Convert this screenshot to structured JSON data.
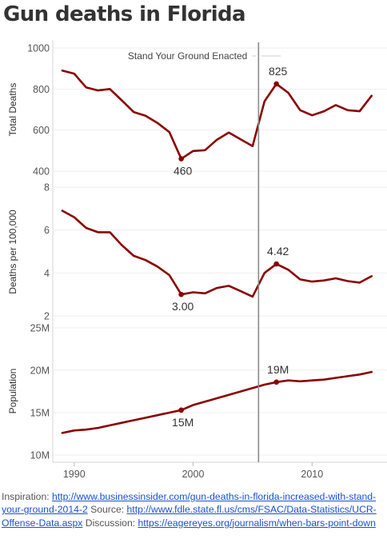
{
  "title": "Gun deaths in Florida",
  "chart_data": [
    {
      "type": "line",
      "ylabel": "Total Deaths",
      "ylim": [
        400,
        1000
      ],
      "yticks": [
        400,
        600,
        800,
        1000
      ],
      "x": [
        1989,
        1990,
        1991,
        1992,
        1993,
        1994,
        1995,
        1996,
        1997,
        1998,
        1999,
        2000,
        2001,
        2002,
        2003,
        2004,
        2005,
        2006,
        2007,
        2008,
        2009,
        2010,
        2011,
        2012,
        2013,
        2014,
        2015
      ],
      "values": [
        890,
        875,
        808,
        793,
        800,
        745,
        688,
        670,
        635,
        590,
        460,
        498,
        502,
        553,
        588,
        555,
        522,
        740,
        825,
        782,
        697,
        672,
        692,
        722,
        697,
        692,
        767
      ],
      "annotations": [
        {
          "x": 1999,
          "value": 460,
          "label": "460"
        },
        {
          "x": 2007,
          "value": 825,
          "label": "825"
        }
      ],
      "reference_line": {
        "x": 2005.5,
        "label": "Stand Your Ground Enacted"
      },
      "color": "#8b0000"
    },
    {
      "type": "line",
      "ylabel": "Deaths per 100,000",
      "ylim": [
        2,
        8
      ],
      "yticks": [
        2,
        4,
        6,
        8
      ],
      "x": [
        1989,
        1990,
        1991,
        1992,
        1993,
        1994,
        1995,
        1996,
        1997,
        1998,
        1999,
        2000,
        2001,
        2002,
        2003,
        2004,
        2005,
        2006,
        2007,
        2008,
        2009,
        2010,
        2011,
        2012,
        2013,
        2014,
        2015
      ],
      "values": [
        6.9,
        6.6,
        6.1,
        5.9,
        5.9,
        5.3,
        4.8,
        4.6,
        4.3,
        3.9,
        3.0,
        3.1,
        3.05,
        3.3,
        3.4,
        3.15,
        2.9,
        4.0,
        4.42,
        4.15,
        3.7,
        3.6,
        3.65,
        3.75,
        3.62,
        3.55,
        3.85
      ],
      "annotations": [
        {
          "x": 1999,
          "value": 3.0,
          "label": "3.00"
        },
        {
          "x": 2007,
          "value": 4.42,
          "label": "4.42"
        }
      ],
      "color": "#8b0000"
    },
    {
      "type": "line",
      "ylabel": "Population",
      "ylim": [
        10,
        25
      ],
      "yticks": [
        10,
        15,
        20,
        25
      ],
      "ytick_labels": [
        "10M",
        "15M",
        "20M",
        "25M"
      ],
      "x": [
        1989,
        1990,
        1991,
        1992,
        1993,
        1994,
        1995,
        1996,
        1997,
        1998,
        1999,
        2000,
        2001,
        2002,
        2003,
        2004,
        2005,
        2006,
        2007,
        2008,
        2009,
        2010,
        2011,
        2012,
        2013,
        2014,
        2015
      ],
      "values": [
        12.6,
        12.9,
        13.0,
        13.2,
        13.5,
        13.8,
        14.1,
        14.4,
        14.7,
        15.0,
        15.3,
        15.9,
        16.3,
        16.7,
        17.1,
        17.5,
        17.9,
        18.3,
        18.6,
        18.8,
        18.7,
        18.8,
        18.9,
        19.1,
        19.3,
        19.5,
        19.8
      ],
      "annotations": [
        {
          "x": 1999,
          "value": 15.3,
          "label": "15M"
        },
        {
          "x": 2007,
          "value": 18.6,
          "label": "19M"
        }
      ],
      "color": "#8b0000"
    }
  ],
  "x_axis": {
    "ticks": [
      1990,
      2000,
      2010
    ],
    "xlim": [
      1988.2,
      2016.3
    ]
  },
  "caption": {
    "inspiration_label": "Inspiration:",
    "inspiration_url": "http://www.businessinsider.com/gun-deaths-in-florida-increased-with-stand-your-ground-2014-2",
    "source_label": "Source:",
    "source_url": "http://www.fdle.state.fl.us/cms/FSAC/Data-Statistics/UCR-Offense-Data.aspx",
    "discussion_label": "Discussion:",
    "discussion_url": "https://eagereyes.org/journalism/when-bars-point-down"
  }
}
